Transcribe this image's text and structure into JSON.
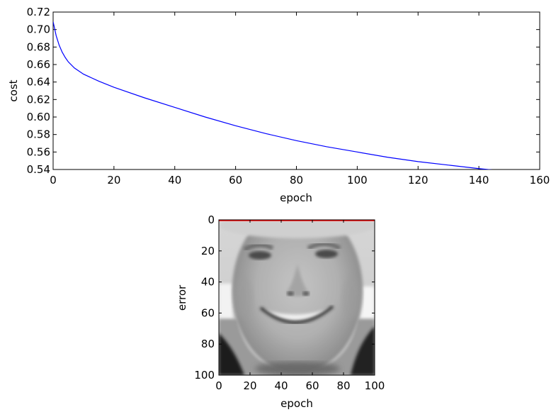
{
  "chart_data": [
    {
      "type": "line",
      "title": "",
      "xlabel": "epoch",
      "ylabel": "cost",
      "xlim": [
        0,
        160
      ],
      "ylim": [
        0.54,
        0.72
      ],
      "xticks": [
        0,
        20,
        40,
        60,
        80,
        100,
        120,
        140,
        160
      ],
      "xtick_labels": [
        "0",
        "20",
        "40",
        "60",
        "80",
        "100",
        "120",
        "140",
        "160"
      ],
      "yticks": [
        0.54,
        0.56,
        0.58,
        0.6,
        0.62,
        0.64,
        0.66,
        0.68,
        0.7,
        0.72
      ],
      "ytick_labels": [
        "0.54",
        "0.56",
        "0.58",
        "0.60",
        "0.62",
        "0.64",
        "0.66",
        "0.68",
        "0.70",
        "0.72"
      ],
      "grid": false,
      "series": [
        {
          "color": "#0000ff",
          "x": [
            0,
            1,
            2,
            3,
            4,
            5,
            7,
            10,
            15,
            20,
            30,
            40,
            50,
            60,
            70,
            80,
            90,
            100,
            110,
            120,
            130,
            140,
            149
          ],
          "y": [
            0.709,
            0.693,
            0.682,
            0.674,
            0.668,
            0.663,
            0.656,
            0.649,
            0.641,
            0.634,
            0.622,
            0.611,
            0.6,
            0.59,
            0.581,
            0.573,
            0.566,
            0.56,
            0.554,
            0.549,
            0.545,
            0.541,
            0.538
          ]
        }
      ]
    },
    {
      "type": "image",
      "title": "",
      "xlabel": "epoch",
      "ylabel": "error",
      "xlim": [
        0,
        100
      ],
      "ylim": [
        100,
        0
      ],
      "xticks": [
        0,
        20,
        40,
        60,
        80,
        100
      ],
      "xtick_labels": [
        "0",
        "20",
        "40",
        "60",
        "80",
        "100"
      ],
      "yticks": [
        0,
        20,
        40,
        60,
        80,
        100
      ],
      "ytick_labels": [
        "0",
        "20",
        "40",
        "60",
        "80",
        "100"
      ],
      "content": "grayscale face photo",
      "overlay_line": {
        "color": "#ff0000",
        "x": [
          0,
          100
        ],
        "y": [
          0,
          0
        ]
      }
    }
  ]
}
